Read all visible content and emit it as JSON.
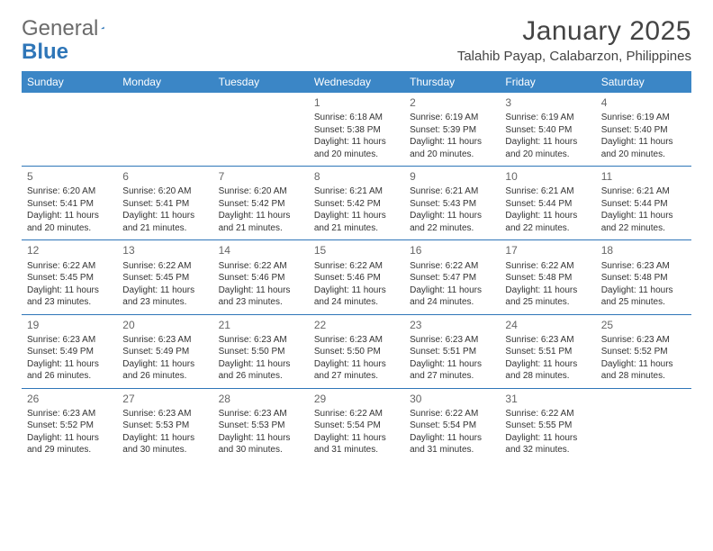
{
  "brand": {
    "part1": "General",
    "part2": "Blue"
  },
  "colors": {
    "header_bg": "#3b86c6",
    "rule": "#2f76b8",
    "brand_gray": "#6b6b6b",
    "brand_blue": "#2f76b8",
    "text": "#333333",
    "daynum": "#666666",
    "title": "#444444"
  },
  "title": "January 2025",
  "location": "Talahib Payap, Calabarzon, Philippines",
  "day_headers": [
    "Sunday",
    "Monday",
    "Tuesday",
    "Wednesday",
    "Thursday",
    "Friday",
    "Saturday"
  ],
  "weeks": [
    [
      null,
      null,
      null,
      {
        "d": "1",
        "sr": "6:18 AM",
        "ss": "5:38 PM",
        "dl": "11 hours and 20 minutes."
      },
      {
        "d": "2",
        "sr": "6:19 AM",
        "ss": "5:39 PM",
        "dl": "11 hours and 20 minutes."
      },
      {
        "d": "3",
        "sr": "6:19 AM",
        "ss": "5:40 PM",
        "dl": "11 hours and 20 minutes."
      },
      {
        "d": "4",
        "sr": "6:19 AM",
        "ss": "5:40 PM",
        "dl": "11 hours and 20 minutes."
      }
    ],
    [
      {
        "d": "5",
        "sr": "6:20 AM",
        "ss": "5:41 PM",
        "dl": "11 hours and 20 minutes."
      },
      {
        "d": "6",
        "sr": "6:20 AM",
        "ss": "5:41 PM",
        "dl": "11 hours and 21 minutes."
      },
      {
        "d": "7",
        "sr": "6:20 AM",
        "ss": "5:42 PM",
        "dl": "11 hours and 21 minutes."
      },
      {
        "d": "8",
        "sr": "6:21 AM",
        "ss": "5:42 PM",
        "dl": "11 hours and 21 minutes."
      },
      {
        "d": "9",
        "sr": "6:21 AM",
        "ss": "5:43 PM",
        "dl": "11 hours and 22 minutes."
      },
      {
        "d": "10",
        "sr": "6:21 AM",
        "ss": "5:44 PM",
        "dl": "11 hours and 22 minutes."
      },
      {
        "d": "11",
        "sr": "6:21 AM",
        "ss": "5:44 PM",
        "dl": "11 hours and 22 minutes."
      }
    ],
    [
      {
        "d": "12",
        "sr": "6:22 AM",
        "ss": "5:45 PM",
        "dl": "11 hours and 23 minutes."
      },
      {
        "d": "13",
        "sr": "6:22 AM",
        "ss": "5:45 PM",
        "dl": "11 hours and 23 minutes."
      },
      {
        "d": "14",
        "sr": "6:22 AM",
        "ss": "5:46 PM",
        "dl": "11 hours and 23 minutes."
      },
      {
        "d": "15",
        "sr": "6:22 AM",
        "ss": "5:46 PM",
        "dl": "11 hours and 24 minutes."
      },
      {
        "d": "16",
        "sr": "6:22 AM",
        "ss": "5:47 PM",
        "dl": "11 hours and 24 minutes."
      },
      {
        "d": "17",
        "sr": "6:22 AM",
        "ss": "5:48 PM",
        "dl": "11 hours and 25 minutes."
      },
      {
        "d": "18",
        "sr": "6:23 AM",
        "ss": "5:48 PM",
        "dl": "11 hours and 25 minutes."
      }
    ],
    [
      {
        "d": "19",
        "sr": "6:23 AM",
        "ss": "5:49 PM",
        "dl": "11 hours and 26 minutes."
      },
      {
        "d": "20",
        "sr": "6:23 AM",
        "ss": "5:49 PM",
        "dl": "11 hours and 26 minutes."
      },
      {
        "d": "21",
        "sr": "6:23 AM",
        "ss": "5:50 PM",
        "dl": "11 hours and 26 minutes."
      },
      {
        "d": "22",
        "sr": "6:23 AM",
        "ss": "5:50 PM",
        "dl": "11 hours and 27 minutes."
      },
      {
        "d": "23",
        "sr": "6:23 AM",
        "ss": "5:51 PM",
        "dl": "11 hours and 27 minutes."
      },
      {
        "d": "24",
        "sr": "6:23 AM",
        "ss": "5:51 PM",
        "dl": "11 hours and 28 minutes."
      },
      {
        "d": "25",
        "sr": "6:23 AM",
        "ss": "5:52 PM",
        "dl": "11 hours and 28 minutes."
      }
    ],
    [
      {
        "d": "26",
        "sr": "6:23 AM",
        "ss": "5:52 PM",
        "dl": "11 hours and 29 minutes."
      },
      {
        "d": "27",
        "sr": "6:23 AM",
        "ss": "5:53 PM",
        "dl": "11 hours and 30 minutes."
      },
      {
        "d": "28",
        "sr": "6:23 AM",
        "ss": "5:53 PM",
        "dl": "11 hours and 30 minutes."
      },
      {
        "d": "29",
        "sr": "6:22 AM",
        "ss": "5:54 PM",
        "dl": "11 hours and 31 minutes."
      },
      {
        "d": "30",
        "sr": "6:22 AM",
        "ss": "5:54 PM",
        "dl": "11 hours and 31 minutes."
      },
      {
        "d": "31",
        "sr": "6:22 AM",
        "ss": "5:55 PM",
        "dl": "11 hours and 32 minutes."
      },
      null
    ]
  ],
  "labels": {
    "sunrise": "Sunrise:",
    "sunset": "Sunset:",
    "daylight": "Daylight:"
  }
}
